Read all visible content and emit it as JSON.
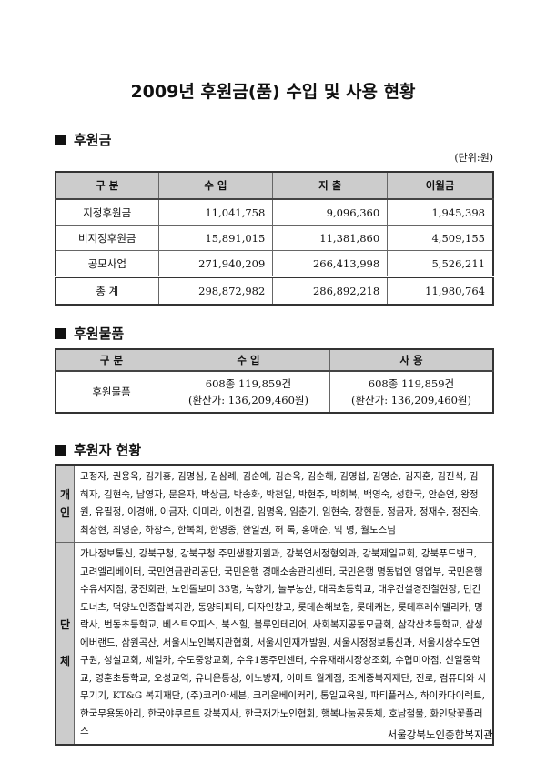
{
  "title": "2009년 후원금(품) 수입 및 사용 현황",
  "section1": {
    "heading": "후원금",
    "unit": "(단위:원)",
    "headers": [
      "구 분",
      "수 입",
      "지 출",
      "이월금"
    ],
    "rows": [
      [
        "지정후원금",
        "11,041,758",
        "9,096,360",
        "1,945,398"
      ],
      [
        "비지정후원금",
        "15,891,015",
        "11,381,860",
        "4,509,155"
      ],
      [
        "공모사업",
        "271,940,209",
        "266,413,998",
        "5,526,211"
      ]
    ],
    "total": [
      "총 계",
      "298,872,982",
      "286,892,218",
      "11,980,764"
    ]
  },
  "section2": {
    "heading": "후원물품",
    "headers": [
      "구 분",
      "수 입",
      "사 용"
    ],
    "row": {
      "label": "후원물품",
      "income_line1": "608종 119,859건",
      "income_line2": "(환산가: 136,209,460원)",
      "use_line1": "608종 119,859건",
      "use_line2": "(환산가: 136,209,460원)"
    }
  },
  "section3": {
    "heading": "후원자 현황",
    "individual_label_1": "개",
    "individual_label_2": "인",
    "individual": "고정자, 권용옥, 김기홍, 김명심, 김삼례, 김순예, 김순옥, 김순해, 김영섭, 김영순, 김지훈, 김진석, 김혀자, 김현숙, 남영자, 문은자, 박상금, 박송화, 박천일, 박현주, 박희복, 백영숙, 성한국, 안순연, 왕정원, 유필정, 이경애, 이금자, 이미라, 이천길, 임명옥, 임춘기, 임현숙, 장현문, 정금자, 정재수, 정진숙, 최상현, 최영순, 하창수, 한복희, 한영종, 한일권, 허 록, 홍애순, 익 명, 월도스님",
    "group_label_1": "단",
    "group_label_2": "체",
    "group": "가나정보통신, 강북구청, 강북구청 주민생활지원과, 강북연세정형외과, 강북제일교회, 강북푸드뱅크, 고려엘리베이터, 국민연금관리공단, 국민은행 경매소송관리센터, 국민은행 명동법인 영업부, 국민은행 수유서지점, 궁전회관, 노인돌보미 33명, 녹향기, 놀부농산, 대곡초등학교, 대우건설경전철현장, 던킨도너츠, 덕양노인종합복지관, 동양티피티, 디자인창고, 롯데손해보험, 롯데캐논, 롯데후레쉬델리카, 명락사, 번동초등학교, 베스트오피스, 북스힐, 블루인테리어, 사회복지공동모금회, 삼각산초등학교, 삼성에버랜드, 삼원곡산, 서울시노인복지관협회, 서울시인재개발원, 서울시정정보통신과, 서울시상수도연구원, 성실교회, 세일카, 수도중앙교회, 수유1동주민센터, 수유재래시장상조회, 수협미아점, 신일중학교, 영훈초등학교, 오성교역, 유니온통상, 이노방제, 이마트 월계점, 조계종복지재단, 진로, 컴퓨터와 사무기기, KT&G 복지재단, (주)코리아세븐, 크리운베이커리, 통일교육원, 파티플러스, 하이카다이렉트, 한국무용동아리, 한국야쿠르트 강북지사, 한국재가노인협회, 행복나눔공동체, 호남철물, 화인당꽃플러스"
  },
  "footer": "서울강북노인종합복지관"
}
